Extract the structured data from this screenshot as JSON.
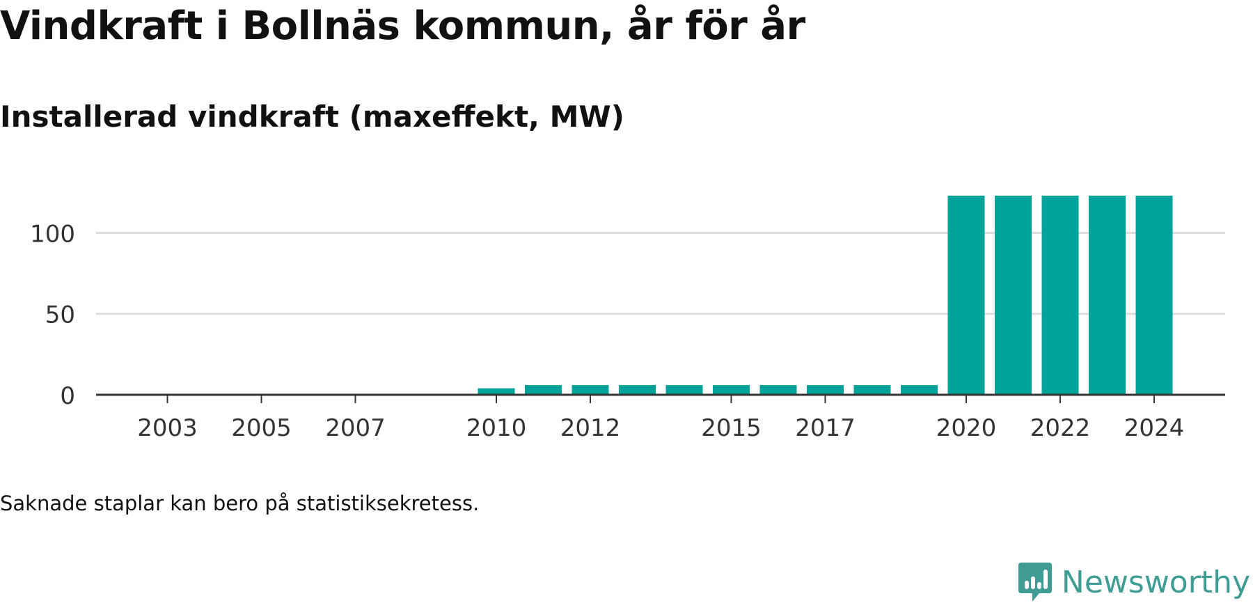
{
  "title": "Vindkraft i Bollnäs kommun, år för år",
  "subtitle": "Installerad vindkraft (maxeffekt, MW)",
  "note": "Saknade staplar kan bero på statistiksekretess.",
  "brand": {
    "name": "Newsworthy",
    "icon": "newsworthy-logo-icon",
    "color": "#3f9c95"
  },
  "colors": {
    "bar": "#00a39a",
    "grid": "#dddddd",
    "axis": "#333333",
    "text": "#333333"
  },
  "chart_data": {
    "type": "bar",
    "categories": [
      "2002",
      "2003",
      "2004",
      "2005",
      "2006",
      "2007",
      "2008",
      "2009",
      "2010",
      "2011",
      "2012",
      "2013",
      "2014",
      "2015",
      "2016",
      "2017",
      "2018",
      "2019",
      "2020",
      "2021",
      "2022",
      "2023",
      "2024"
    ],
    "values": [
      null,
      null,
      null,
      null,
      null,
      null,
      null,
      null,
      4,
      6,
      6,
      6,
      6,
      6,
      6,
      6,
      6,
      6,
      123,
      123,
      123,
      123,
      123
    ],
    "tick_labels": [
      "2003",
      "2005",
      "2007",
      "2010",
      "2012",
      "2015",
      "2017",
      "2020",
      "2022",
      "2024"
    ],
    "yticks": [
      0,
      50,
      100
    ],
    "ylim": [
      0,
      123
    ],
    "xlabel": "",
    "ylabel": "",
    "grid": true,
    "legend": "none"
  }
}
